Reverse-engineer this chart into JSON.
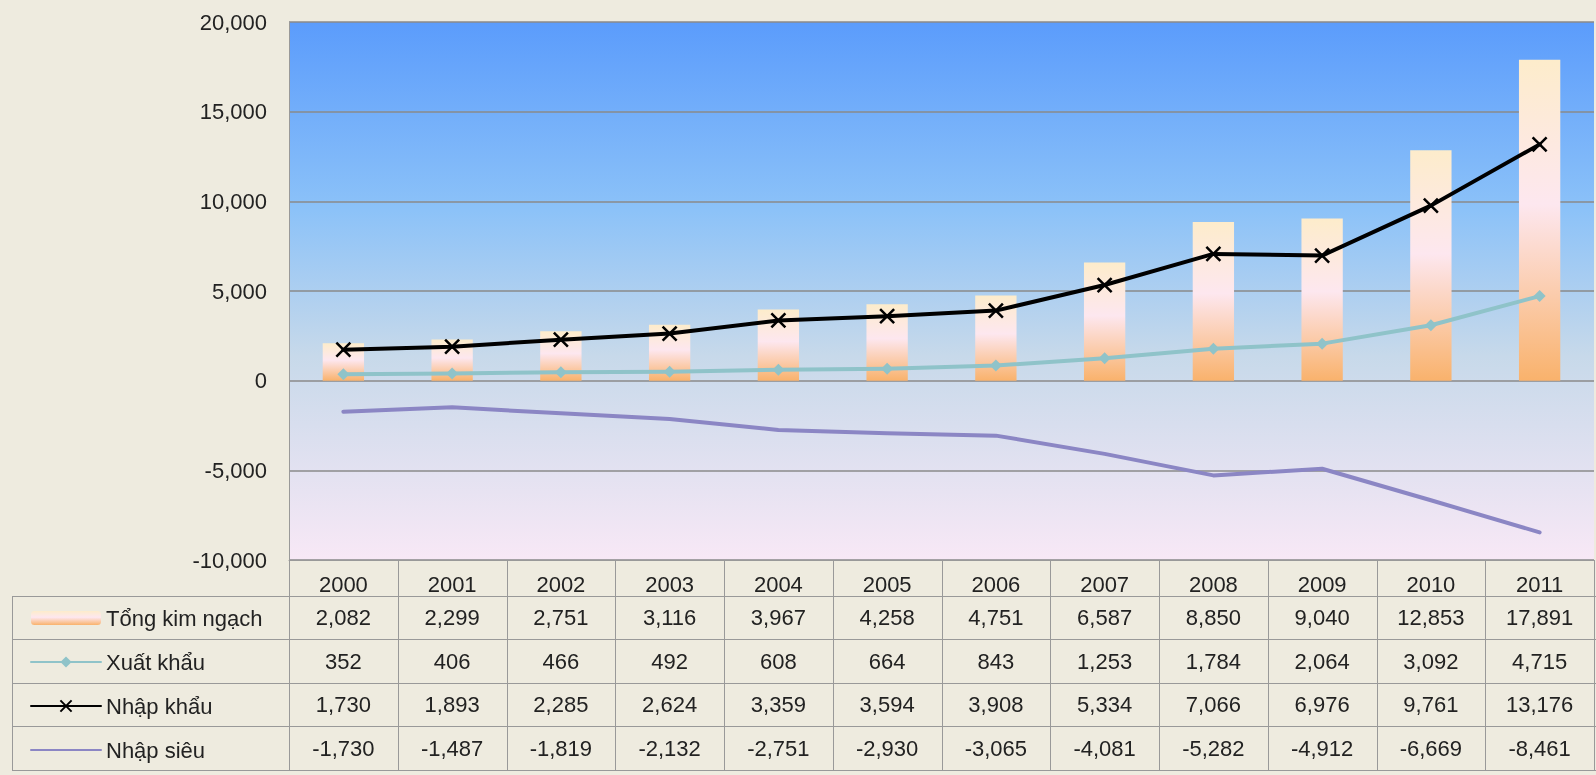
{
  "chart_data": {
    "type": "bar",
    "categories": [
      "2000",
      "2001",
      "2002",
      "2003",
      "2004",
      "2005",
      "2006",
      "2007",
      "2008",
      "2009",
      "2010",
      "2011"
    ],
    "series": [
      {
        "name": "Tổng kim ngạch",
        "color": "#f9b26c",
        "values": [
          2082,
          2299,
          2751,
          3116,
          3967,
          4258,
          4751,
          6587,
          8850,
          9040,
          12853,
          17891
        ],
        "value_labels": [
          "2,082",
          "2,299",
          "2,751",
          "3,116",
          "3,967",
          "4,258",
          "4,751",
          "6,587",
          "8,850",
          "9,040",
          "12,853",
          "17,891"
        ]
      },
      {
        "name": "Xuất khẩu",
        "type": "line",
        "color": "#8fc3c9",
        "marker": "diamond",
        "values": [
          352,
          406,
          466,
          492,
          608,
          664,
          843,
          1253,
          1784,
          2064,
          3092,
          4715
        ],
        "value_labels": [
          "352",
          "406",
          "466",
          "492",
          "608",
          "664",
          "843",
          "1,253",
          "1,784",
          "2,064",
          "3,092",
          "4,715"
        ]
      },
      {
        "name": "Nhập khẩu",
        "type": "line",
        "color": "#000000",
        "marker": "cross",
        "values": [
          1730,
          1893,
          2285,
          2624,
          3359,
          3594,
          3908,
          5334,
          7066,
          6976,
          9761,
          13176
        ],
        "value_labels": [
          "1,730",
          "1,893",
          "2,285",
          "2,624",
          "3,359",
          "3,594",
          "3,908",
          "5,334",
          "7,066",
          "6,976",
          "9,761",
          "13,176"
        ]
      },
      {
        "name": "Nhập siêu",
        "type": "line",
        "color": "#8b86c4",
        "marker": "none",
        "values": [
          -1730,
          -1487,
          -1819,
          -2132,
          -2751,
          -2930,
          -3065,
          -4081,
          -5282,
          -4912,
          -6669,
          -8461
        ],
        "value_labels": [
          "-1,730",
          "-1,487",
          "-1,819",
          "-2,132",
          "-2,751",
          "-2,930",
          "-3,065",
          "-4,081",
          "-5,282",
          "-4,912",
          "-6,669",
          "-8,461"
        ]
      }
    ],
    "ylim": [
      -10000,
      20000
    ],
    "yticks": [
      {
        "value": -10000,
        "label": "-10,000"
      },
      {
        "value": -5000,
        "label": "-5,000"
      },
      {
        "value": 0,
        "label": "0"
      },
      {
        "value": 5000,
        "label": "5,000"
      },
      {
        "value": 10000,
        "label": "10,000"
      },
      {
        "value": 15000,
        "label": "15,000"
      },
      {
        "value": 20000,
        "label": "20,000"
      }
    ],
    "grid": "y",
    "legend": "bottom left",
    "line_style": "solid"
  }
}
